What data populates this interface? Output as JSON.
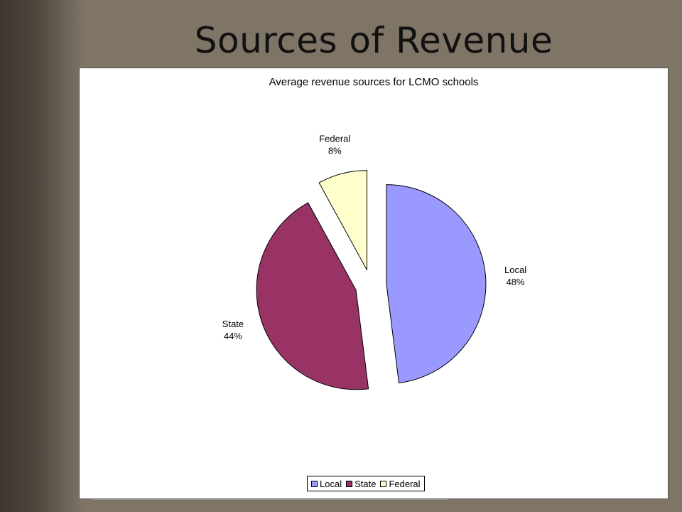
{
  "slide": {
    "title": "Sources of Revenue"
  },
  "chart_data": {
    "type": "pie",
    "title": "Average revenue sources for LCMO schools",
    "categories": [
      "Local",
      "State",
      "Federal"
    ],
    "values": [
      48,
      44,
      8
    ],
    "value_labels": [
      "48%",
      "44%",
      "8%"
    ],
    "colors": [
      "#9999ff",
      "#993366",
      "#ffffcc"
    ],
    "exploded": true,
    "legend": "bottom"
  }
}
